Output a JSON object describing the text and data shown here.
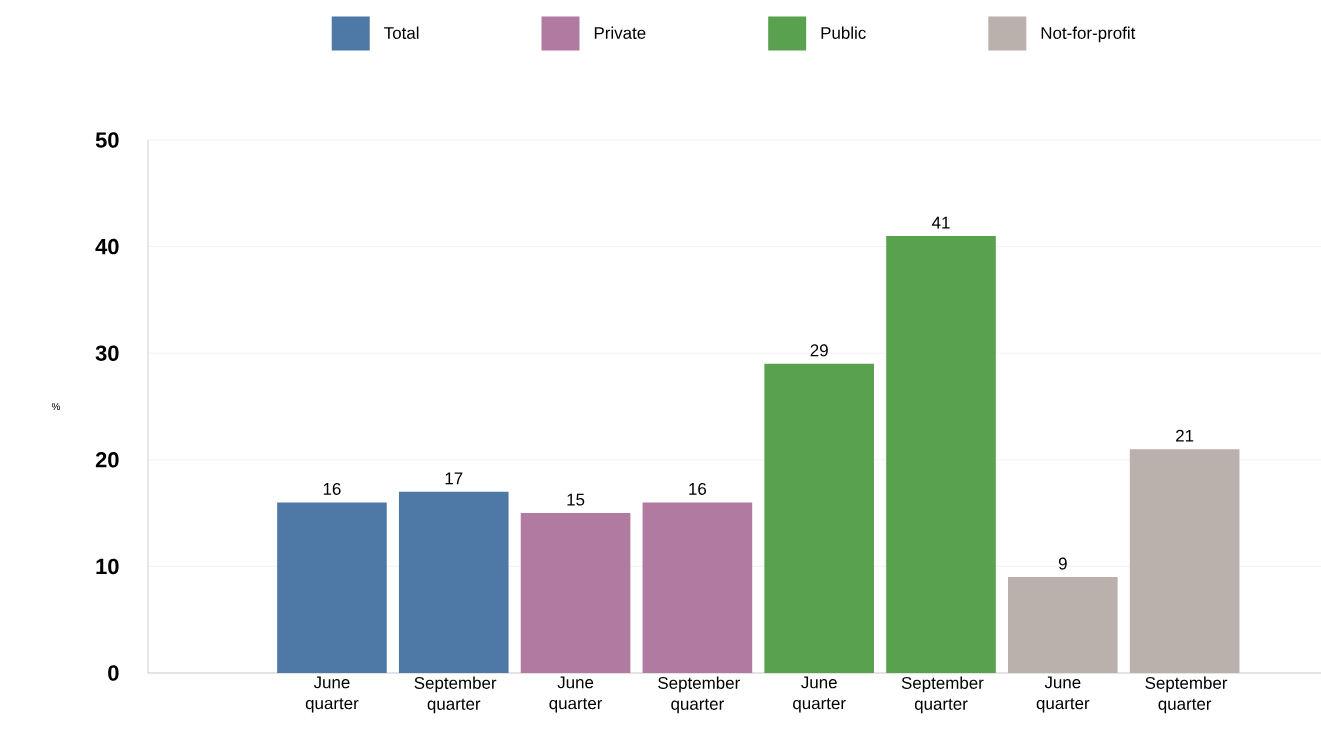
{
  "chart_data": {
    "type": "bar",
    "ylabel": "%",
    "categories": [
      "June quarter",
      "September quarter",
      "June quarter",
      "September quarter",
      "June quarter",
      "September quarter",
      "June quarter",
      "September quarter"
    ],
    "series": [
      {
        "name": "Total",
        "color": "#4e79a7",
        "values": [
          16,
          17,
          null,
          null,
          null,
          null,
          null,
          null
        ]
      },
      {
        "name": "Private",
        "color": "#b07aa1",
        "values": [
          null,
          null,
          15,
          16,
          null,
          null,
          null,
          null
        ]
      },
      {
        "name": "Public",
        "color": "#59a14f",
        "values": [
          null,
          null,
          null,
          null,
          29,
          41,
          null,
          null
        ]
      },
      {
        "name": "Not-for-profit",
        "color": "#bab0ac",
        "values": [
          null,
          null,
          null,
          null,
          null,
          null,
          9,
          21
        ]
      }
    ],
    "ylim": [
      0,
      50
    ],
    "yticks": [
      0,
      10,
      20,
      30,
      40,
      50
    ],
    "grid": "y",
    "legend": "top",
    "data_labels": true
  }
}
